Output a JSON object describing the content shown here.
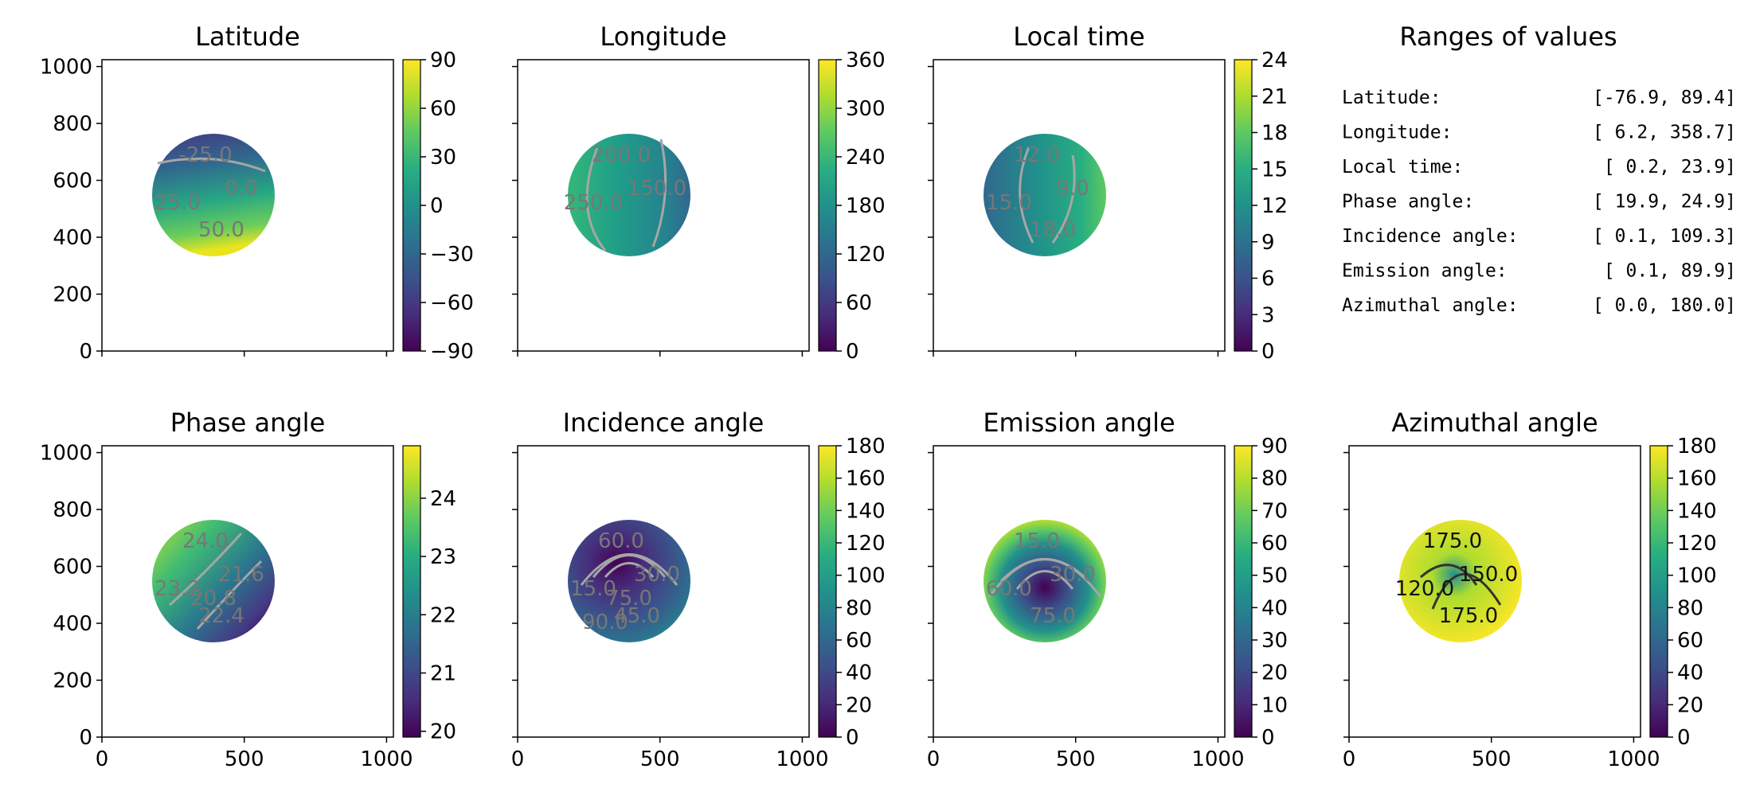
{
  "chart_data": [
    {
      "type": "heatmap",
      "title": "Latitude",
      "xlim": [
        0,
        1024
      ],
      "ylim": [
        0,
        1024
      ],
      "yticks": [
        "0",
        "200",
        "400",
        "600",
        "800",
        "1000"
      ],
      "xticks": [],
      "colorbar": {
        "min": -90,
        "max": 90,
        "ticks": [
          "−90",
          "−60",
          "−30",
          "0",
          "30",
          "60",
          "90"
        ]
      },
      "contour_labels": [
        "-25.0",
        "0.0",
        "25.0",
        "50.0"
      ]
    },
    {
      "type": "heatmap",
      "title": "Longitude",
      "xlim": [
        0,
        1024
      ],
      "ylim": [
        0,
        1024
      ],
      "xticks": [],
      "colorbar": {
        "min": 0,
        "max": 360,
        "ticks": [
          "0",
          "60",
          "120",
          "180",
          "240",
          "300",
          "360"
        ]
      },
      "contour_labels": [
        "200.0",
        "150.0",
        "250.0"
      ]
    },
    {
      "type": "heatmap",
      "title": "Local time",
      "xlim": [
        0,
        1024
      ],
      "ylim": [
        0,
        1024
      ],
      "xticks": [],
      "colorbar": {
        "min": 0,
        "max": 24,
        "ticks": [
          "0",
          "3",
          "6",
          "9",
          "12",
          "15",
          "18",
          "21",
          "24"
        ]
      },
      "contour_labels": [
        "12.0",
        "9.0",
        "15.0",
        "18.0"
      ]
    },
    {
      "type": "table",
      "title": "Ranges of values",
      "rows": [
        {
          "label": "Latitude:",
          "range": "[-76.9,  89.4]"
        },
        {
          "label": "Longitude:",
          "range": "[  6.2, 358.7]"
        },
        {
          "label": "Local time:",
          "range": "[  0.2,  23.9]"
        },
        {
          "label": "Phase angle:",
          "range": "[ 19.9,  24.9]"
        },
        {
          "label": "Incidence angle:",
          "range": "[  0.1, 109.3]"
        },
        {
          "label": "Emission angle:",
          "range": "[  0.1,  89.9]"
        },
        {
          "label": "Azimuthal angle:",
          "range": "[  0.0, 180.0]"
        }
      ]
    },
    {
      "type": "heatmap",
      "title": "Phase angle",
      "xlim": [
        0,
        1024
      ],
      "ylim": [
        0,
        1024
      ],
      "xticks": [
        "0",
        "500",
        "1000"
      ],
      "yticks": [
        "0",
        "200",
        "400",
        "600",
        "800",
        "1000"
      ],
      "colorbar": {
        "min": 19.9,
        "max": 24.9,
        "ticks": [
          "20",
          "21",
          "22",
          "23",
          "24"
        ]
      },
      "contour_labels": [
        "24.0",
        "21.6",
        "23.2",
        "22.4",
        "20.8"
      ]
    },
    {
      "type": "heatmap",
      "title": "Incidence angle",
      "xlim": [
        0,
        1024
      ],
      "ylim": [
        0,
        1024
      ],
      "xticks": [
        "0",
        "500",
        "1000"
      ],
      "colorbar": {
        "min": 0,
        "max": 180,
        "ticks": [
          "0",
          "20",
          "40",
          "60",
          "80",
          "100",
          "120",
          "140",
          "160",
          "180"
        ]
      },
      "contour_labels": [
        "60.0",
        "30.0",
        "15.0",
        "45.0",
        "75.0",
        "90.0"
      ]
    },
    {
      "type": "heatmap",
      "title": "Emission angle",
      "xlim": [
        0,
        1024
      ],
      "ylim": [
        0,
        1024
      ],
      "xticks": [
        "0",
        "500",
        "1000"
      ],
      "colorbar": {
        "min": 0,
        "max": 90,
        "ticks": [
          "0",
          "10",
          "20",
          "30",
          "40",
          "50",
          "60",
          "70",
          "80",
          "90"
        ]
      },
      "contour_labels": [
        "15.0",
        "30.0",
        "60.0",
        "75.0"
      ]
    },
    {
      "type": "heatmap",
      "title": "Azimuthal angle",
      "xlim": [
        0,
        1024
      ],
      "ylim": [
        0,
        1024
      ],
      "xticks": [
        "0",
        "500",
        "1000"
      ],
      "colorbar": {
        "min": 0,
        "max": 180,
        "ticks": [
          "0",
          "20",
          "40",
          "60",
          "80",
          "100",
          "120",
          "140",
          "160",
          "180"
        ]
      },
      "contour_labels": [
        "175.0",
        "150.0",
        "120.0",
        "175.0"
      ]
    }
  ]
}
